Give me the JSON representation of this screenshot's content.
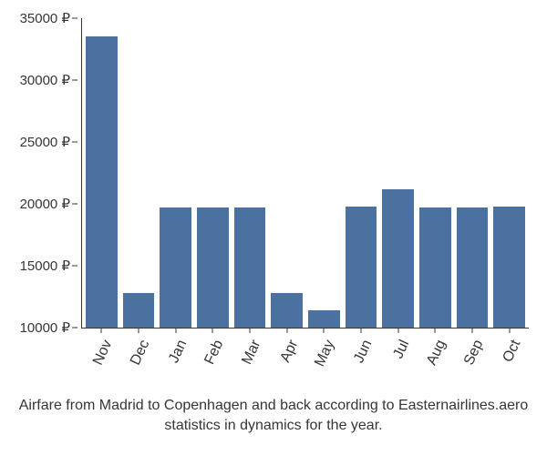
{
  "chart": {
    "type": "bar",
    "categories": [
      "Nov",
      "Dec",
      "Jan",
      "Feb",
      "Mar",
      "Apr",
      "May",
      "Jun",
      "Jul",
      "Aug",
      "Sep",
      "Oct"
    ],
    "values": [
      33500,
      12800,
      19700,
      19700,
      19700,
      12800,
      11400,
      19800,
      21200,
      19700,
      19700,
      19800
    ],
    "bar_color": "#4a719f",
    "background_color": "#ffffff",
    "axis_color": "#363636",
    "text_color": "#363636",
    "ylim": [
      10000,
      35000
    ],
    "ytick_step": 5000,
    "y_tick_labels": [
      "10000 ₽",
      "15000 ₽",
      "20000 ₽",
      "25000 ₽",
      "30000 ₽",
      "35000 ₽"
    ],
    "y_tick_values": [
      10000,
      15000,
      20000,
      25000,
      30000,
      35000
    ],
    "xlabel_rotation_deg": -65,
    "bar_gap_ratio": 0.15,
    "tick_fontsize": 15,
    "caption_fontsize": 16,
    "caption": "Airfare from Madrid to Copenhagen and back according to Easternairlines.aero statistics in dynamics for the year."
  }
}
